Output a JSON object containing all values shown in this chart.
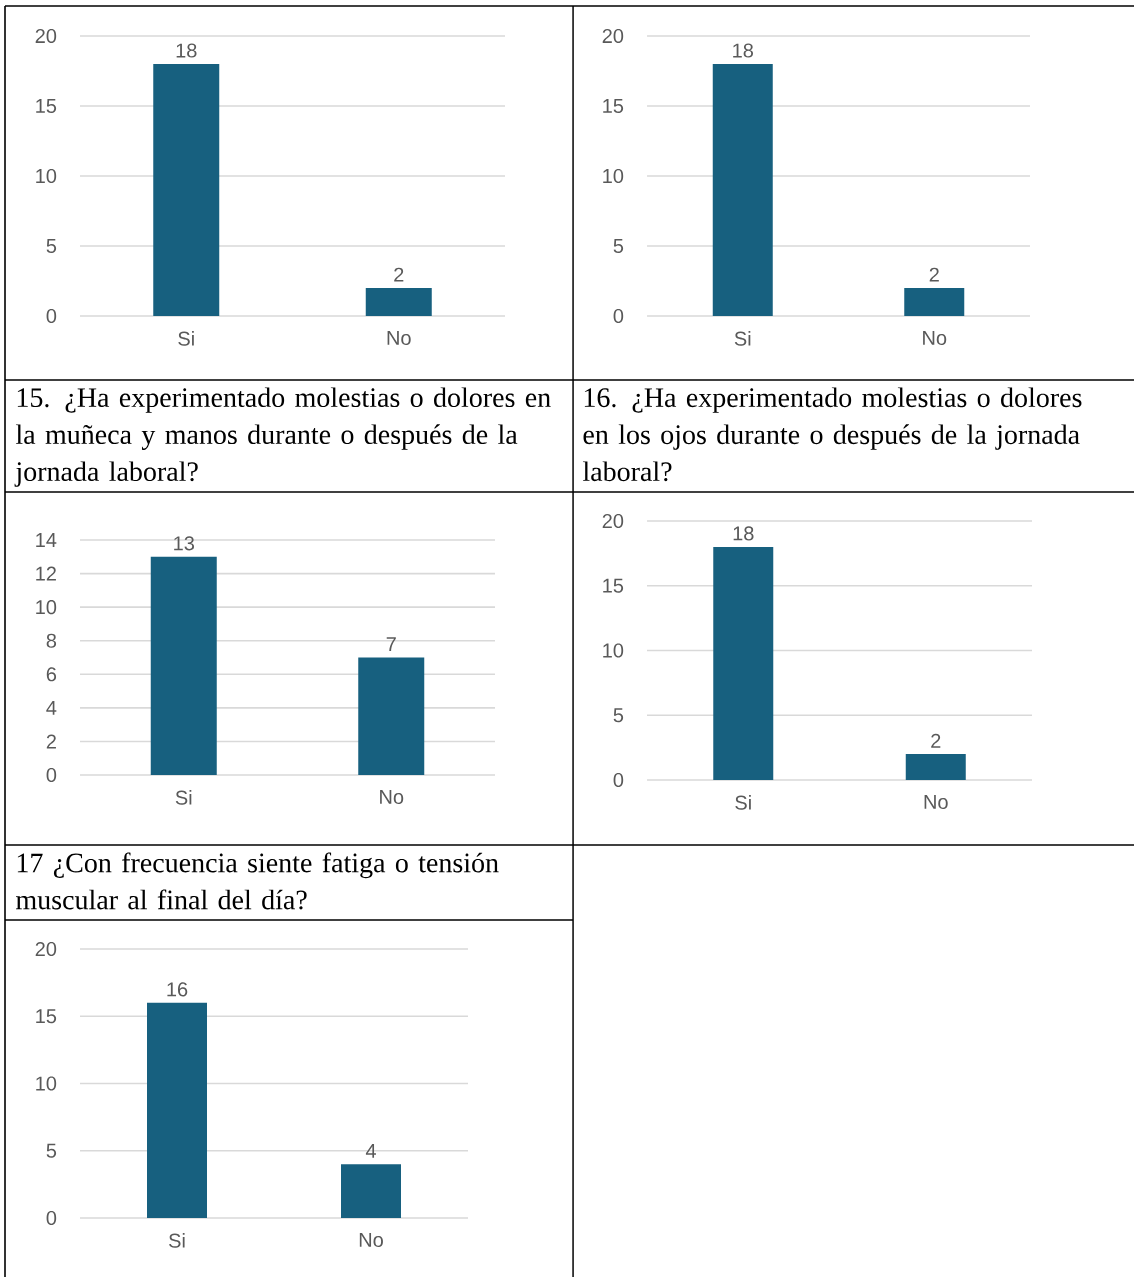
{
  "chart_data": [
    {
      "type": "bar",
      "categories": [
        "Si",
        "No"
      ],
      "values": [
        18,
        2
      ],
      "color": "#17607f",
      "ylim": [
        0,
        20
      ],
      "yticks": [
        0,
        5,
        10,
        15,
        20
      ],
      "grid": "y",
      "data_labels": true
    },
    {
      "type": "bar",
      "categories": [
        "Si",
        "No"
      ],
      "values": [
        18,
        2
      ],
      "color": "#17607f",
      "ylim": [
        0,
        20
      ],
      "yticks": [
        0,
        5,
        10,
        15,
        20
      ],
      "grid": "y",
      "data_labels": true
    },
    {
      "type": "bar",
      "title": "15.      ¿Ha experimentado molestias o dolores en la muñeca y manos durante o después de la jornada laboral?",
      "categories": [
        "Si",
        "No"
      ],
      "values": [
        13,
        7
      ],
      "color": "#17607f",
      "ylim": [
        0,
        14
      ],
      "yticks": [
        0,
        2,
        4,
        6,
        8,
        10,
        12,
        14
      ],
      "grid": "y",
      "data_labels": true
    },
    {
      "type": "bar",
      "title": "16.      ¿Ha experimentado molestias o dolores en los ojos durante o después de la jornada laboral?",
      "categories": [
        "Si",
        "No"
      ],
      "values": [
        18,
        2
      ],
      "color": "#17607f",
      "ylim": [
        0,
        20
      ],
      "yticks": [
        0,
        5,
        10,
        15,
        20
      ],
      "grid": "y",
      "data_labels": true
    },
    {
      "type": "bar",
      "title": "17 ¿Con frecuencia siente fatiga o tensión muscular al final del día?",
      "categories": [
        "Si",
        "No"
      ],
      "values": [
        16,
        4
      ],
      "color": "#17607f",
      "ylim": [
        0,
        20
      ],
      "yticks": [
        0,
        5,
        10,
        15,
        20
      ],
      "grid": "y",
      "data_labels": true
    }
  ]
}
